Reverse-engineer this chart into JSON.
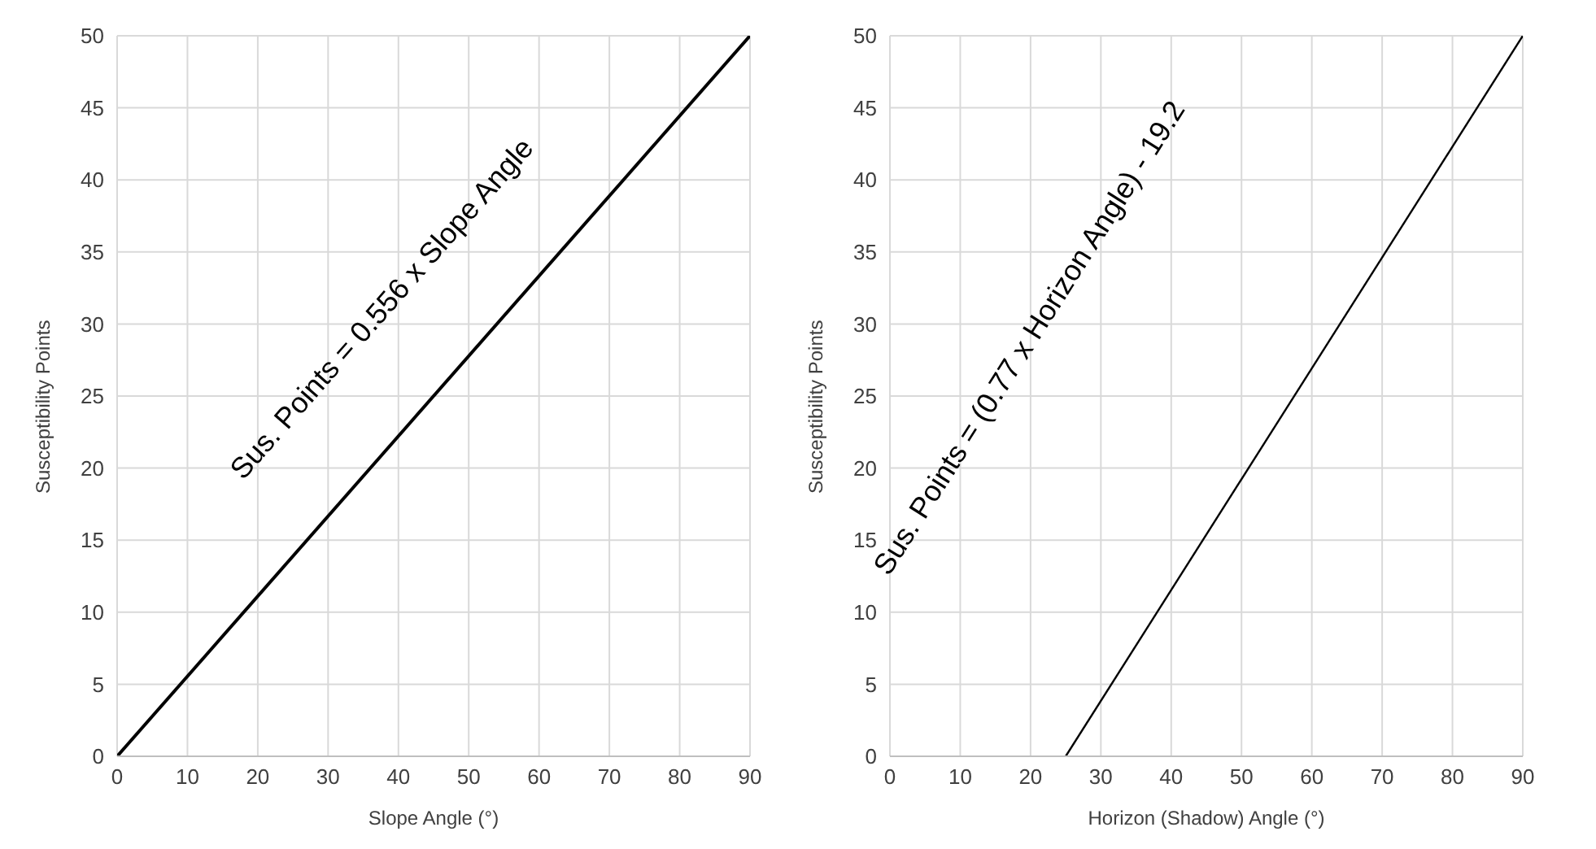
{
  "chart_data": [
    {
      "type": "line",
      "xlabel": "Slope Angle (°)",
      "ylabel": "Susceptibility Points",
      "x": [
        0,
        90
      ],
      "series": [
        {
          "color": "#000000",
          "values": [
            0,
            50
          ]
        }
      ],
      "xlim": [
        0,
        90
      ],
      "xticks": [
        0,
        10,
        20,
        30,
        40,
        50,
        60,
        70,
        80,
        90
      ],
      "ylim": [
        0,
        50
      ],
      "yticks": [
        0,
        5,
        10,
        15,
        20,
        25,
        30,
        35,
        40,
        45,
        50
      ],
      "grid": true,
      "marker": "none",
      "line_style": "solid",
      "annotations": [
        "Sus. Points = 0.556 x Slope Angle"
      ]
    },
    {
      "type": "line",
      "xlabel": "Horizon (Shadow) Angle (°)",
      "ylabel": "Susceptibility Points",
      "x": [
        25,
        90
      ],
      "series": [
        {
          "color": "#000000",
          "values": [
            0,
            50
          ]
        }
      ],
      "xlim": [
        0,
        90
      ],
      "xticks": [
        0,
        10,
        20,
        30,
        40,
        50,
        60,
        70,
        80,
        90
      ],
      "ylim": [
        0,
        50
      ],
      "yticks": [
        0,
        5,
        10,
        15,
        20,
        25,
        30,
        35,
        40,
        45,
        50
      ],
      "grid": true,
      "marker": "none",
      "line_style": "solid",
      "annotations": [
        "Sus. Points = (0.77 x Horizon Angle) - 19.2"
      ]
    }
  ]
}
